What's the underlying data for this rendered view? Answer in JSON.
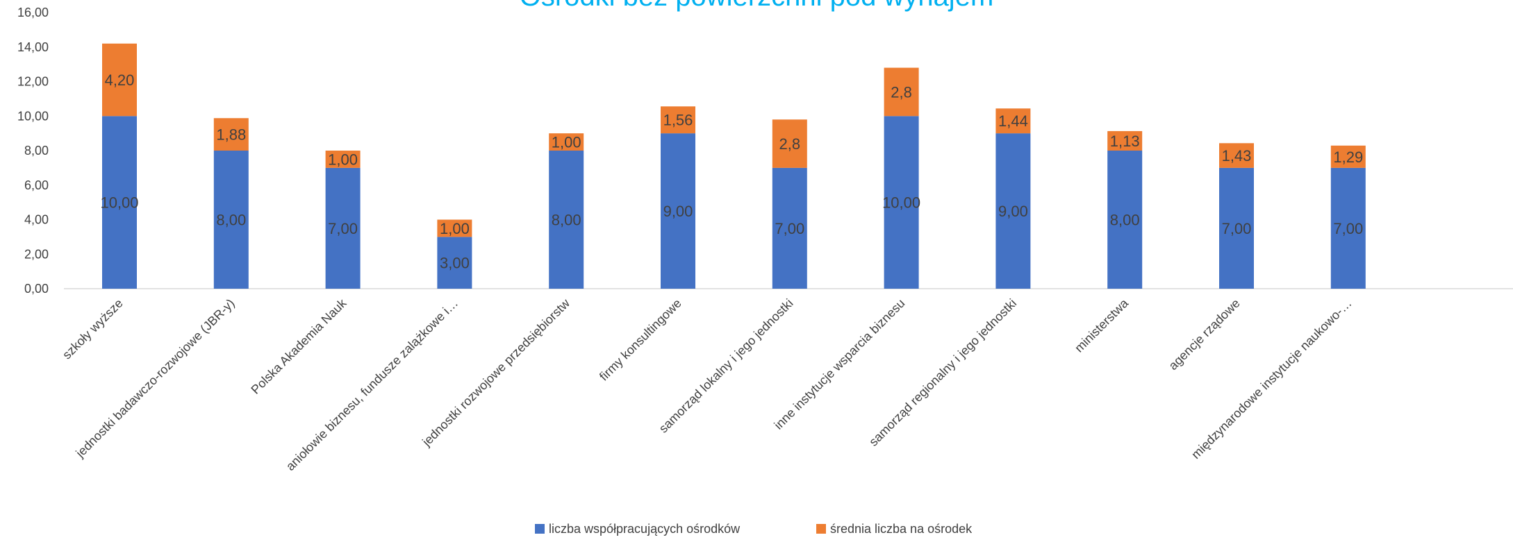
{
  "chart_data": {
    "type": "bar",
    "stacked": true,
    "title": "Ośrodki bez powierzchni pod wynajem",
    "categories": [
      "szkoły wyższe",
      "jednostki badawczo-rozwojowe (JBR-y)",
      "Polska Akademia Nauk",
      "aniołowie biznesu, fundusze zalążkowe i…",
      "jednostki rozwojowe przedsiębiorstw",
      "firmy konsultingowe",
      "samorząd lokalny i jego jednostki",
      "inne instytucje wsparcia biznesu",
      "samorząd regionalny i jego jednostki",
      "ministerstwa",
      "agencje rządowe",
      "międzynarodowe instytucje naukowo-…"
    ],
    "series": [
      {
        "name": "liczba współpracujących ośrodków",
        "color": "#4472C4",
        "values": [
          10,
          8,
          7,
          3,
          8,
          9,
          7,
          10,
          9,
          8,
          7,
          7
        ],
        "labels": [
          "10,00",
          "8,00",
          "7,00",
          "3,00",
          "8,00",
          "9,00",
          "7,00",
          "10,00",
          "9,00",
          "8,00",
          "7,00",
          "7,00"
        ]
      },
      {
        "name": "średnia liczba na ośrodek",
        "color": "#ED7D31",
        "values": [
          4.2,
          1.88,
          1.0,
          1.0,
          1.0,
          1.56,
          2.8,
          2.8,
          1.44,
          1.13,
          1.43,
          1.29
        ],
        "labels": [
          "4,20",
          "1,88",
          "1,00",
          "1,00",
          "1,00",
          "1,56",
          "2,8",
          "2,8",
          "1,44",
          "1,13",
          "1,43",
          "1,29"
        ]
      }
    ],
    "ylim": [
      0,
      16
    ],
    "yticks": [
      "0,00",
      "2,00",
      "4,00",
      "6,00",
      "8,00",
      "10,00",
      "12,00",
      "14,00",
      "16,00"
    ],
    "ytick_values": [
      0,
      2,
      4,
      6,
      8,
      10,
      12,
      14,
      16
    ],
    "xlabel": "",
    "ylabel": "",
    "grid": false,
    "legend_position": "bottom",
    "title_color": "#00B0F0"
  }
}
